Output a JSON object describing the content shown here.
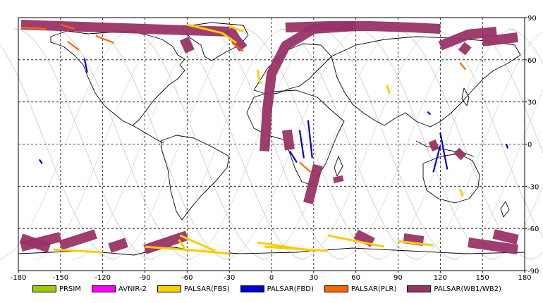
{
  "chart_data": {
    "type": "map",
    "projection": "equirectangular",
    "xlim": [
      -180,
      180
    ],
    "ylim": [
      -90,
      90
    ],
    "x_ticks": [
      -180,
      -150,
      -120,
      -90,
      -60,
      -30,
      0,
      30,
      60,
      90,
      120,
      150,
      180
    ],
    "y_ticks": [
      90,
      60,
      30,
      0,
      -30,
      -60,
      -90
    ],
    "grid": "dashed",
    "legend_placement": "bottom",
    "legend": [
      {
        "label": "PRSIM",
        "color": "#99cc00"
      },
      {
        "label": "AVNIR-2",
        "color": "#ff00ff"
      },
      {
        "label": "PALSAR(FBS)",
        "color": "#ffcc00"
      },
      {
        "label": "PALSAR(FBD)",
        "color": "#0000cc"
      },
      {
        "label": "PALSAR(PLR)",
        "color": "#ff6600"
      },
      {
        "label": "PALSAR(WB1/WB2)",
        "color": "#993366"
      }
    ],
    "swaths": [
      {
        "type": "wb",
        "pts": [
          [
            -178,
            85
          ],
          [
            -150,
            84
          ],
          [
            -120,
            83
          ],
          [
            -90,
            82
          ],
          [
            -60,
            81
          ],
          [
            -30,
            80
          ]
        ]
      },
      {
        "type": "wb",
        "pts": [
          [
            10,
            83
          ],
          [
            40,
            84
          ],
          [
            70,
            84
          ],
          [
            100,
            83
          ],
          [
            120,
            82
          ]
        ]
      },
      {
        "type": "wb",
        "pts": [
          [
            -5,
            -5
          ],
          [
            -3,
            25
          ],
          [
            0,
            50
          ],
          [
            10,
            70
          ],
          [
            30,
            82
          ],
          [
            60,
            84
          ]
        ]
      },
      {
        "type": "wb",
        "pts": [
          [
            -62,
            75
          ],
          [
            -58,
            66
          ]
        ]
      },
      {
        "type": "wb",
        "pts": [
          [
            -30,
            82
          ],
          [
            -25,
            74
          ],
          [
            -20,
            68
          ]
        ]
      },
      {
        "type": "wb",
        "pts": [
          [
            120,
            70
          ],
          [
            140,
            78
          ],
          [
            160,
            80
          ]
        ]
      },
      {
        "type": "wb",
        "pts": [
          [
            150,
            73
          ],
          [
            175,
            76
          ]
        ]
      },
      {
        "type": "wb",
        "pts": [
          [
            135,
            70
          ],
          [
            140,
            66
          ]
        ]
      },
      {
        "type": "wb",
        "pts": [
          [
            26,
            -42
          ],
          [
            33,
            -15
          ]
        ]
      },
      {
        "type": "wb",
        "pts": [
          [
            13,
            -4
          ],
          [
            11,
            10
          ]
        ]
      },
      {
        "type": "wb",
        "pts": [
          [
            -178,
            -67
          ],
          [
            -158,
            -74
          ]
        ]
      },
      {
        "type": "wb",
        "pts": [
          [
            -178,
            -73
          ],
          [
            -150,
            -66
          ]
        ]
      },
      {
        "type": "wb",
        "pts": [
          [
            -150,
            -72
          ],
          [
            -125,
            -64
          ]
        ]
      },
      {
        "type": "wb",
        "pts": [
          [
            -115,
            -74
          ],
          [
            -103,
            -70
          ]
        ]
      },
      {
        "type": "wb",
        "pts": [
          [
            -90,
            -75
          ],
          [
            -60,
            -65
          ]
        ]
      },
      {
        "type": "wb",
        "pts": [
          [
            60,
            -64
          ],
          [
            72,
            -70
          ]
        ]
      },
      {
        "type": "wb",
        "pts": [
          [
            94,
            -67
          ],
          [
            108,
            -69
          ]
        ]
      },
      {
        "type": "wb",
        "pts": [
          [
            140,
            -70
          ],
          [
            175,
            -75
          ]
        ]
      },
      {
        "type": "wb",
        "pts": [
          [
            158,
            -64
          ],
          [
            175,
            -68
          ]
        ]
      },
      {
        "type": "wb",
        "pts": [
          [
            48,
            -27
          ],
          [
            47,
            -23
          ]
        ]
      },
      {
        "type": "wb",
        "pts": [
          [
            113,
            -2
          ],
          [
            118,
            0
          ]
        ]
      },
      {
        "type": "wb",
        "pts": [
          [
            132,
            -9
          ],
          [
            136,
            -5
          ]
        ]
      },
      {
        "type": "fbs",
        "pts": [
          [
            -60,
            85
          ],
          [
            -35,
            79
          ],
          [
            -25,
            72
          ]
        ]
      },
      {
        "type": "fbs",
        "pts": [
          [
            -30,
            84
          ],
          [
            -20,
            80
          ]
        ]
      },
      {
        "type": "fbs",
        "pts": [
          [
            -10,
            53
          ],
          [
            -8,
            43
          ]
        ]
      },
      {
        "type": "fbs",
        "pts": [
          [
            -155,
            -75
          ],
          [
            -120,
            -77
          ]
        ]
      },
      {
        "type": "fbs",
        "pts": [
          [
            -90,
            -73
          ],
          [
            -50,
            -76
          ],
          [
            -30,
            -78
          ]
        ]
      },
      {
        "type": "fbs",
        "pts": [
          [
            -65,
            -65
          ],
          [
            -40,
            -76
          ]
        ]
      },
      {
        "type": "fbs",
        "pts": [
          [
            -10,
            -70
          ],
          [
            30,
            -76
          ]
        ]
      },
      {
        "type": "fbs",
        "pts": [
          [
            40,
            -65
          ],
          [
            80,
            -73
          ]
        ]
      },
      {
        "type": "fbs",
        "pts": [
          [
            90,
            -69
          ],
          [
            115,
            -72
          ]
        ]
      },
      {
        "type": "fbs",
        "pts": [
          [
            -5,
            -73
          ],
          [
            40,
            -76
          ]
        ]
      },
      {
        "type": "fbs",
        "pts": [
          [
            82,
            42
          ],
          [
            84,
            36
          ]
        ]
      },
      {
        "type": "fbs",
        "pts": [
          [
            134,
            -32
          ],
          [
            136,
            -37
          ]
        ]
      },
      {
        "type": "fbs",
        "pts": [
          [
            -66,
            -68
          ],
          [
            -62,
            -74
          ]
        ]
      },
      {
        "type": "fbd",
        "pts": [
          [
            -133,
            61
          ],
          [
            -131,
            51
          ]
        ]
      },
      {
        "type": "fbd",
        "pts": [
          [
            13,
            -5
          ],
          [
            18,
            -13
          ]
        ]
      },
      {
        "type": "fbd",
        "pts": [
          [
            23,
            -10
          ],
          [
            20,
            10
          ]
        ]
      },
      {
        "type": "fbd",
        "pts": [
          [
            29,
            -10
          ],
          [
            26,
            17
          ]
        ]
      },
      {
        "type": "fbd",
        "pts": [
          [
            115,
            -20
          ],
          [
            120,
            -1
          ]
        ]
      },
      {
        "type": "fbd",
        "pts": [
          [
            125,
            -18
          ],
          [
            120,
            8
          ]
        ]
      },
      {
        "type": "fbd",
        "pts": [
          [
            -165,
            -11
          ],
          [
            -163,
            -14
          ]
        ]
      },
      {
        "type": "fbd",
        "pts": [
          [
            167,
            0
          ],
          [
            168,
            -3
          ]
        ]
      },
      {
        "type": "fbd",
        "pts": [
          [
            111,
            23
          ],
          [
            113,
            21
          ]
        ]
      },
      {
        "type": "plr",
        "pts": [
          [
            -178,
            83
          ],
          [
            -160,
            82
          ]
        ]
      },
      {
        "type": "plr",
        "pts": [
          [
            -150,
            85
          ],
          [
            -140,
            82
          ]
        ]
      },
      {
        "type": "plr",
        "pts": [
          [
            -125,
            77
          ],
          [
            -112,
            72
          ]
        ]
      },
      {
        "type": "plr",
        "pts": [
          [
            -145,
            73
          ],
          [
            -137,
            67
          ]
        ]
      },
      {
        "type": "plr",
        "pts": [
          [
            -28,
            72
          ],
          [
            -20,
            66
          ]
        ]
      },
      {
        "type": "plr",
        "pts": [
          [
            20,
            -13
          ],
          [
            28,
            -20
          ]
        ]
      },
      {
        "type": "plr",
        "pts": [
          [
            134,
            58
          ],
          [
            138,
            53
          ]
        ]
      }
    ]
  }
}
